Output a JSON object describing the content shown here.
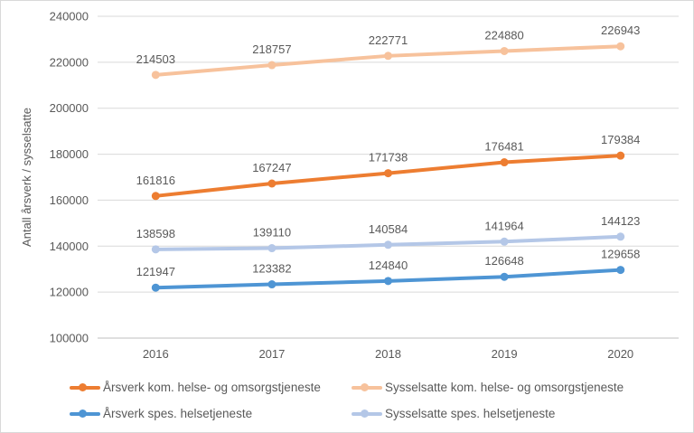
{
  "chart_data": {
    "type": "line",
    "title": "",
    "xlabel": "",
    "ylabel": "Antall årsverk / sysselsatte",
    "categories": [
      "2016",
      "2017",
      "2018",
      "2019",
      "2020"
    ],
    "series": [
      {
        "name": "Årsverk kom. helse- og omsorgstjeneste",
        "color": "#ED7D31",
        "values": [
          161816,
          167247,
          171738,
          176481,
          179384
        ]
      },
      {
        "name": "Sysselsatte kom. helse- og omsorgstjeneste",
        "color": "#F7C29C",
        "values": [
          214503,
          218757,
          222771,
          224880,
          226943
        ]
      },
      {
        "name": "Årsverk spes. helsetjeneste",
        "color": "#4E95D4",
        "values": [
          121947,
          123382,
          124840,
          126648,
          129658
        ]
      },
      {
        "name": "Sysselsatte spes. helsetjeneste",
        "color": "#B4C7E7",
        "values": [
          138598,
          139110,
          140584,
          141964,
          144123
        ]
      }
    ],
    "ylim": [
      100000,
      240000
    ],
    "ytick_step": 20000,
    "yticks": [
      "100000",
      "120000",
      "140000",
      "160000",
      "180000",
      "200000",
      "220000",
      "240000"
    ],
    "grid": true,
    "data_labels": true,
    "legend_position": "bottom"
  },
  "colors": {
    "axis_text": "#595959",
    "gridline": "#D9D9D9",
    "axis_line": "#BFBFBF",
    "frame_border": "#D9D9D9",
    "background": "#FFFFFF"
  }
}
